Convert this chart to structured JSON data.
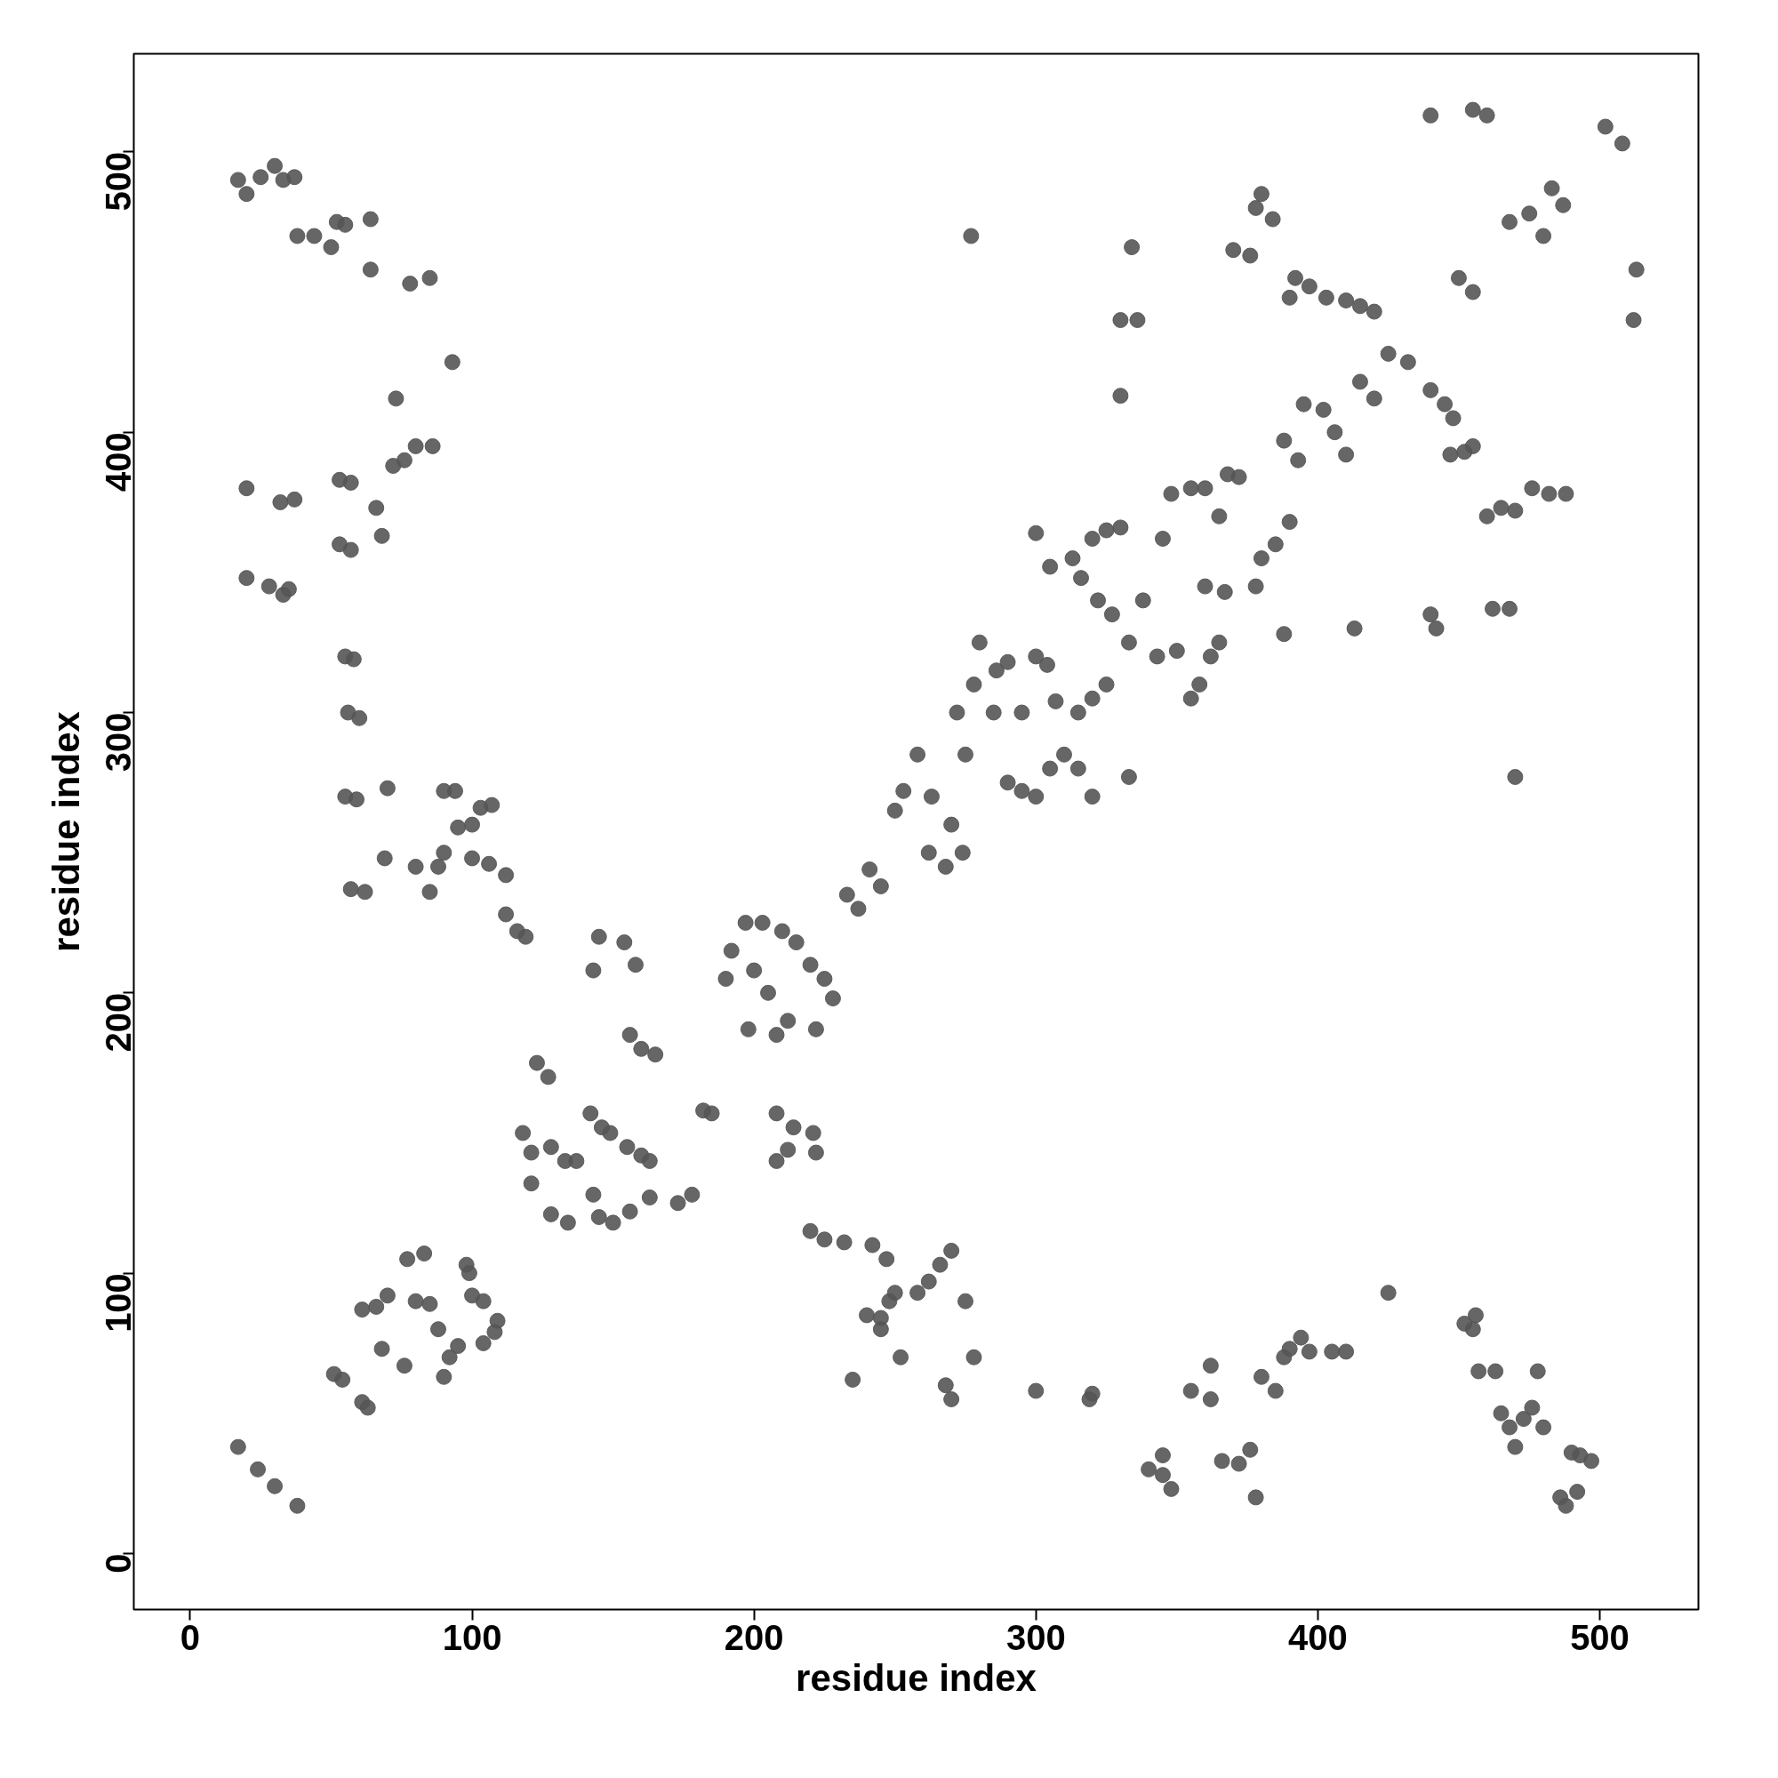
{
  "chart_data": {
    "type": "scatter",
    "xlabel": "residue index",
    "ylabel": "residue index",
    "xlim": [
      -20,
      535
    ],
    "ylim": [
      -20,
      535
    ],
    "xticks": [
      0,
      100,
      200,
      300,
      400,
      500
    ],
    "yticks": [
      0,
      100,
      200,
      300,
      400,
      500
    ],
    "grid": false,
    "marker": "circle",
    "series": [
      {
        "color": "#555555",
        "x": [
          17,
          20,
          25,
          30,
          33,
          37,
          38,
          44,
          50,
          52,
          55,
          64,
          64,
          78,
          85,
          93,
          20,
          32,
          37,
          20,
          28,
          33,
          35,
          53,
          57,
          66,
          68,
          72,
          76,
          80,
          86,
          73,
          53,
          57,
          55,
          58,
          56,
          60,
          55,
          59,
          70,
          57,
          62,
          69,
          80,
          88,
          85,
          90,
          90,
          94,
          95,
          100,
          103,
          107,
          100,
          106,
          112,
          112,
          116,
          119,
          17,
          24,
          30,
          38,
          51,
          54,
          61,
          63,
          61,
          66,
          70,
          68,
          76,
          77,
          83,
          80,
          85,
          88,
          90,
          92,
          95,
          98,
          99,
          100,
          104,
          104,
          108,
          109,
          123,
          127,
          118,
          121,
          128,
          121,
          128,
          134,
          133,
          137,
          142,
          146,
          149,
          143,
          145,
          150,
          156,
          155,
          160,
          163,
          143,
          145,
          154,
          158,
          156,
          160,
          165,
          163,
          173,
          178,
          182,
          185,
          190,
          192,
          197,
          203,
          200,
          198,
          205,
          208,
          212,
          210,
          215,
          220,
          225,
          228,
          222,
          208,
          214,
          221,
          222,
          208,
          212,
          220,
          225,
          232,
          233,
          237,
          241,
          245,
          240,
          245,
          235,
          242,
          247,
          248,
          250,
          245,
          252,
          258,
          262,
          266,
          270,
          275,
          270,
          268,
          278,
          300,
          320,
          319,
          250,
          253,
          258,
          263,
          262,
          268,
          274,
          270,
          275,
          272,
          278,
          280,
          286,
          290,
          285,
          295,
          290,
          295,
          300,
          305,
          310,
          315,
          320,
          300,
          304,
          307,
          315,
          320,
          325,
          305,
          313,
          316,
          320,
          325,
          330,
          322,
          327,
          333,
          338,
          343,
          350,
          355,
          358,
          362,
          365,
          345,
          348,
          355,
          360,
          368,
          365,
          372,
          360,
          367,
          378,
          380,
          385,
          390,
          388,
          277,
          300,
          333,
          330,
          330,
          336,
          334,
          370,
          376,
          378,
          380,
          384,
          390,
          392,
          397,
          403,
          410,
          415,
          420,
          395,
          402,
          406,
          410,
          415,
          420,
          425,
          432,
          440,
          445,
          448,
          447,
          452,
          455,
          440,
          442,
          460,
          465,
          470,
          470,
          462,
          468,
          468,
          475,
          480,
          483,
          487,
          476,
          482,
          488,
          440,
          455,
          460,
          502,
          508,
          513,
          512,
          450,
          455,
          388,
          393,
          413,
          340,
          345,
          345,
          348,
          355,
          362,
          362,
          366,
          372,
          376,
          378,
          380,
          385,
          388,
          390,
          394,
          397,
          405,
          410,
          425,
          452,
          456,
          457,
          463,
          465,
          468,
          470,
          473,
          476,
          478,
          480,
          486,
          490,
          493,
          492,
          497,
          488,
          455
        ],
        "values": [
          490,
          485,
          491,
          495,
          490,
          491,
          470,
          470,
          466,
          475,
          474,
          476,
          458,
          453,
          455,
          425,
          380,
          375,
          376,
          348,
          345,
          342,
          344,
          383,
          382,
          373,
          363,
          388,
          390,
          395,
          395,
          412,
          360,
          358,
          320,
          319,
          300,
          298,
          270,
          269,
          273,
          237,
          236,
          248,
          245,
          245,
          236,
          250,
          272,
          272,
          259,
          260,
          266,
          267,
          248,
          246,
          242,
          228,
          222,
          220,
          38,
          30,
          24,
          17,
          64,
          62,
          54,
          52,
          87,
          88,
          92,
          73,
          67,
          105,
          107,
          90,
          89,
          80,
          63,
          70,
          74,
          103,
          100,
          92,
          90,
          75,
          79,
          83,
          175,
          170,
          150,
          143,
          145,
          132,
          121,
          118,
          140,
          140,
          157,
          152,
          150,
          128,
          120,
          118,
          122,
          145,
          142,
          140,
          208,
          220,
          218,
          210,
          185,
          180,
          178,
          127,
          125,
          128,
          158,
          157,
          205,
          215,
          225,
          225,
          208,
          187,
          200,
          185,
          190,
          222,
          218,
          210,
          205,
          198,
          187,
          157,
          152,
          150,
          143,
          140,
          144,
          115,
          112,
          111,
          235,
          230,
          244,
          238,
          85,
          84,
          62,
          110,
          105,
          90,
          93,
          80,
          70,
          93,
          97,
          103,
          108,
          90,
          55,
          60,
          70,
          58,
          57,
          55,
          265,
          272,
          285,
          270,
          250,
          245,
          250,
          260,
          285,
          300,
          310,
          325,
          315,
          318,
          300,
          300,
          275,
          272,
          270,
          280,
          285,
          280,
          270,
          320,
          317,
          304,
          300,
          305,
          310,
          352,
          355,
          348,
          362,
          365,
          366,
          340,
          335,
          325,
          340,
          320,
          322,
          305,
          310,
          320,
          325,
          362,
          378,
          380,
          380,
          385,
          370,
          384,
          345,
          343,
          345,
          355,
          360,
          368,
          328,
          470,
          364,
          277,
          413,
          440,
          440,
          466,
          465,
          463,
          480,
          485,
          476,
          448,
          455,
          452,
          448,
          447,
          445,
          443,
          410,
          408,
          400,
          392,
          418,
          412,
          428,
          425,
          415,
          410,
          405,
          392,
          393,
          395,
          335,
          330,
          370,
          373,
          372,
          277,
          337,
          337,
          475,
          478,
          470,
          487,
          481,
          380,
          378,
          378,
          513,
          515,
          513,
          509,
          503,
          458,
          440,
          455,
          450,
          397,
          390,
          330,
          30,
          28,
          35,
          23,
          58,
          55,
          67,
          33,
          32,
          37,
          20,
          63,
          58,
          70,
          73,
          77,
          72,
          72,
          72,
          93,
          82,
          85,
          65,
          65,
          50,
          45,
          38,
          48,
          52,
          65,
          45,
          20,
          36,
          35,
          22,
          33,
          17,
          80
        ]
      }
    ]
  }
}
